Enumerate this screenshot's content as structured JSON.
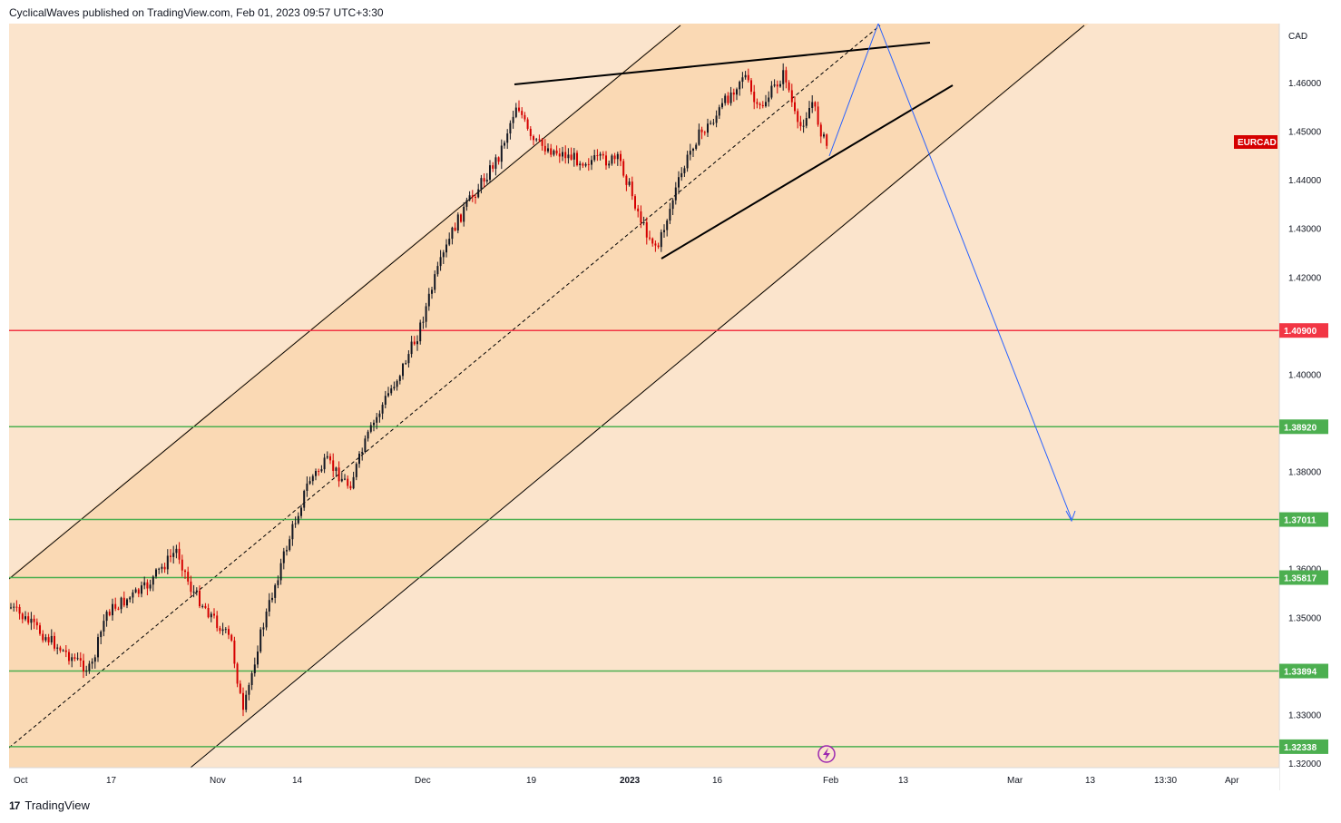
{
  "header": {
    "text": "CyclicalWaves published on TradingView.com, Feb 01, 2023 09:57 UTC+3:30"
  },
  "footer": {
    "logo": "17",
    "brand": "TradingView"
  },
  "chart_data": {
    "type": "candlestick",
    "symbol": "EURCAD",
    "currency": "CAD",
    "y_ticks": [
      1.46,
      1.45,
      1.44,
      1.43,
      1.42,
      1.4,
      1.38,
      1.36,
      1.35,
      1.33,
      1.32
    ],
    "x_ticks": [
      "Oct",
      "17",
      "Nov",
      "14",
      "Dec",
      "19",
      "2023",
      "16",
      "Feb",
      "13",
      "Mar",
      "13",
      "13:30",
      "Apr"
    ],
    "horizontal_levels": [
      {
        "price": 1.409,
        "label": "1.40900",
        "color": "#f23645"
      },
      {
        "price": 1.3892,
        "label": "1.38920",
        "color": "#4caf50"
      },
      {
        "price": 1.37011,
        "label": "1.37011",
        "color": "#4caf50"
      },
      {
        "price": 1.35817,
        "label": "1.35817",
        "color": "#4caf50"
      },
      {
        "price": 1.33894,
        "label": "1.33894",
        "color": "#4caf50"
      },
      {
        "price": 1.32338,
        "label": "1.32338",
        "color": "#4caf50"
      }
    ],
    "symbol_tag": {
      "text": "EURCAD",
      "color": "#d50000"
    },
    "colors": {
      "background": "#fbe4cc",
      "channel_fill": "#fad9b4",
      "up": "#131722",
      "down": "#d50000",
      "projection": "#2962ff"
    },
    "price_path": [
      [
        "Oct",
        1.352
      ],
      [
        "Oct 7",
        1.343
      ],
      [
        "Oct 12",
        1.339
      ],
      [
        "Oct 17",
        1.351
      ],
      [
        "Oct 21",
        1.356
      ],
      [
        "Oct 26",
        1.364
      ],
      [
        "Oct 28",
        1.356
      ],
      [
        "Nov 3",
        1.345
      ],
      [
        "Nov 4",
        1.33
      ],
      [
        "Nov 8",
        1.345
      ],
      [
        "Nov 11",
        1.358
      ],
      [
        "Nov 15",
        1.368
      ],
      [
        "Nov 17",
        1.378
      ],
      [
        "Nov 21",
        1.382
      ],
      [
        "Nov 23",
        1.377
      ],
      [
        "Nov 25",
        1.387
      ],
      [
        "Nov 28",
        1.395
      ],
      [
        "Nov 30",
        1.4
      ],
      [
        "Dec 2",
        1.408
      ],
      [
        "Dec 5",
        1.42
      ],
      [
        "Dec 7",
        1.43
      ],
      [
        "Dec 9",
        1.435
      ],
      [
        "Dec 13",
        1.445
      ],
      [
        "Dec 15",
        1.456
      ],
      [
        "Dec 19",
        1.448
      ],
      [
        "Dec 22",
        1.446
      ],
      [
        "Dec 27",
        1.444
      ],
      [
        "Jan 2",
        1.444
      ],
      [
        "Jan 5",
        1.43
      ],
      [
        "Jan 7",
        1.426
      ],
      [
        "Jan 10",
        1.438
      ],
      [
        "Jan 13",
        1.448
      ],
      [
        "Jan 16",
        1.452
      ],
      [
        "Jan 19",
        1.462
      ],
      [
        "Jan 22",
        1.454
      ],
      [
        "Jan 25",
        1.462
      ],
      [
        "Jan 27",
        1.45
      ],
      [
        "Jan 29",
        1.456
      ],
      [
        "Feb 1",
        1.447
      ]
    ]
  }
}
